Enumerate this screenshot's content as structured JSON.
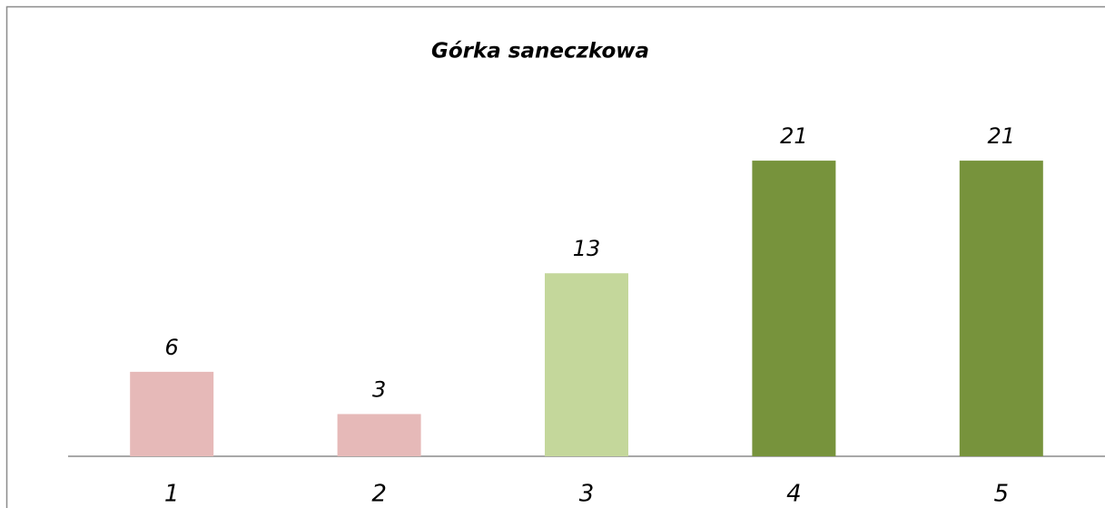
{
  "chart_data": {
    "type": "bar",
    "title": "Górka saneczkowa",
    "categories": [
      "1",
      "2",
      "3",
      "4",
      "5"
    ],
    "values": [
      6,
      3,
      13,
      21,
      21
    ],
    "colors": [
      "#e6b9b8",
      "#e6b9b8",
      "#c4d79b",
      "#77933c",
      "#77933c"
    ],
    "ylim": [
      0,
      25
    ]
  }
}
